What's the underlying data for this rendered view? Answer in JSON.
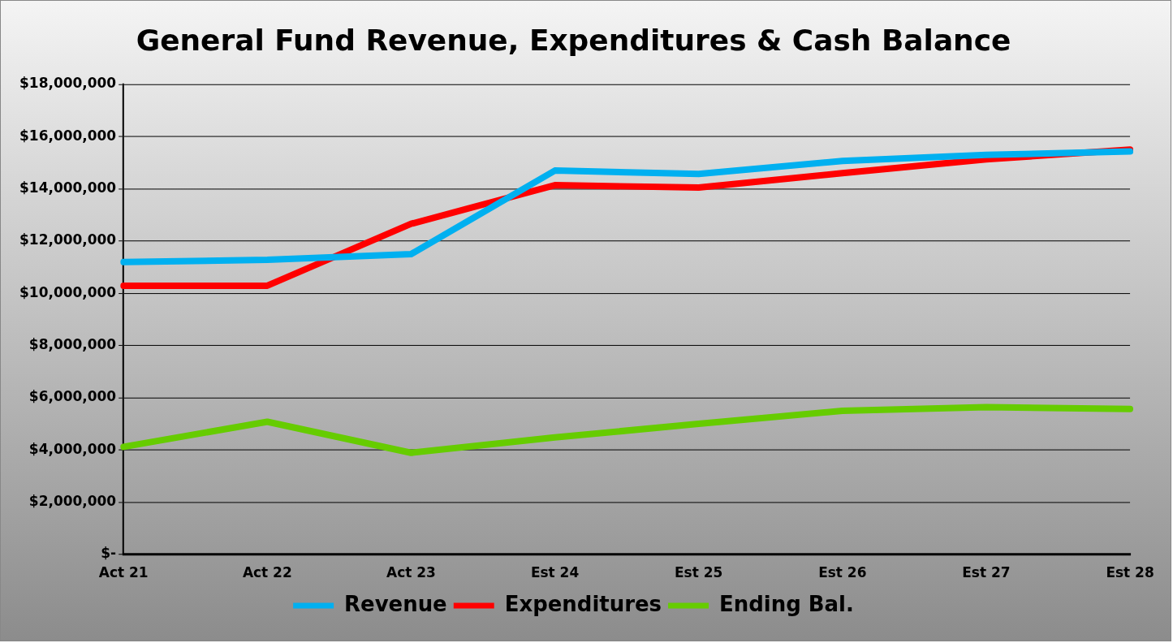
{
  "chart_data": {
    "type": "line",
    "title": "General Fund Revenue, Expenditures & Cash Balance",
    "categories": [
      "Act 21",
      "Act 22",
      "Act 23",
      "Est 24",
      "Est 25",
      "Est 26",
      "Est 27",
      "Est 28"
    ],
    "series": [
      {
        "name": "Revenue",
        "color": "#00b0f0",
        "values": [
          11200000,
          11280000,
          11500000,
          14700000,
          14570000,
          15070000,
          15300000,
          15430000
        ]
      },
      {
        "name": "Expenditures",
        "color": "#ff0000",
        "values": [
          10290000,
          10290000,
          12660000,
          14140000,
          14050000,
          14600000,
          15130000,
          15500000
        ]
      },
      {
        "name": "Ending Bal.",
        "color": "#66cc00",
        "values": [
          4120000,
          5080000,
          3890000,
          4480000,
          5000000,
          5500000,
          5640000,
          5570000
        ]
      }
    ],
    "ylim": [
      0,
      18000000
    ],
    "yticks": [
      {
        "value": 0,
        "label": "$-"
      },
      {
        "value": 2000000,
        "label": "$2,000,000"
      },
      {
        "value": 4000000,
        "label": "$4,000,000"
      },
      {
        "value": 6000000,
        "label": "$6,000,000"
      },
      {
        "value": 8000000,
        "label": "$8,000,000"
      },
      {
        "value": 10000000,
        "label": "$10,000,000"
      },
      {
        "value": 12000000,
        "label": "$12,000,000"
      },
      {
        "value": 14000000,
        "label": "$14,000,000"
      },
      {
        "value": 16000000,
        "label": "$16,000,000"
      },
      {
        "value": 18000000,
        "label": "$18,000,000"
      }
    ],
    "grid": "y",
    "legend": "bottom",
    "marker": "none",
    "line_style": "solid"
  }
}
